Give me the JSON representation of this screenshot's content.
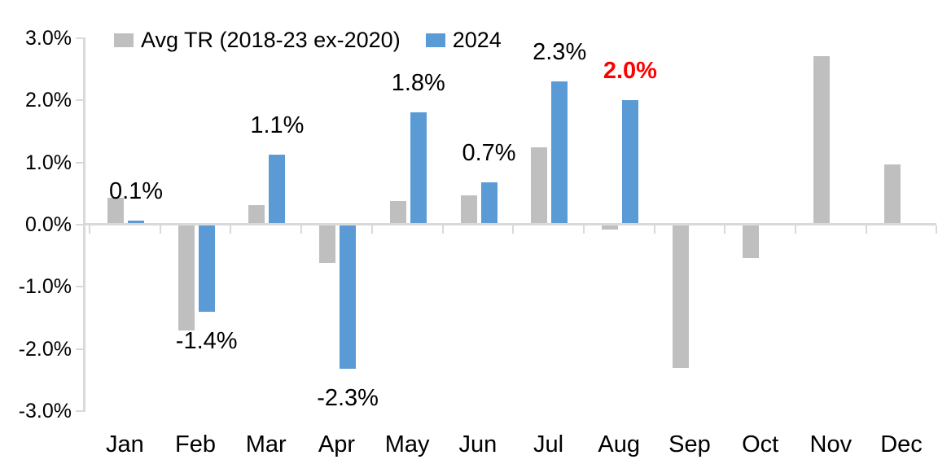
{
  "chart_data": {
    "type": "bar",
    "title": "",
    "categories": [
      "Jan",
      "Feb",
      "Mar",
      "Apr",
      "May",
      "Jun",
      "Jul",
      "Aug",
      "Sep",
      "Oct",
      "Nov",
      "Dec"
    ],
    "series": [
      {
        "name": "Avg TR (2018-23 ex-2020)",
        "color": "#BFBFBF",
        "values": [
          0.43,
          -1.7,
          0.32,
          -0.62,
          0.38,
          0.47,
          1.25,
          -0.08,
          -2.3,
          -0.54,
          2.71,
          0.97
        ]
      },
      {
        "name": "2024",
        "color": "#5B9BD5",
        "values": [
          0.06,
          -1.4,
          1.13,
          -2.32,
          1.81,
          0.68,
          2.3,
          2.0,
          null,
          null,
          null,
          null
        ]
      }
    ],
    "value_labels": [
      {
        "month_index": 0,
        "text": "0.1%",
        "color": "#000000",
        "bold": false
      },
      {
        "month_index": 1,
        "text": "-1.4%",
        "color": "#000000",
        "bold": false
      },
      {
        "month_index": 2,
        "text": "1.1%",
        "color": "#000000",
        "bold": false
      },
      {
        "month_index": 3,
        "text": "-2.3%",
        "color": "#000000",
        "bold": false
      },
      {
        "month_index": 4,
        "text": "1.8%",
        "color": "#000000",
        "bold": false
      },
      {
        "month_index": 5,
        "text": "0.7%",
        "color": "#000000",
        "bold": false
      },
      {
        "month_index": 6,
        "text": "2.3%",
        "color": "#000000",
        "bold": false
      },
      {
        "month_index": 7,
        "text": "2.0%",
        "color": "#FF0000",
        "bold": true
      }
    ],
    "yticks": [
      {
        "label": "3.0%",
        "value": 3
      },
      {
        "label": "2.0%",
        "value": 2
      },
      {
        "label": "1.0%",
        "value": 1
      },
      {
        "label": "0.0%",
        "value": 0
      },
      {
        "label": "-1.0%",
        "value": -1
      },
      {
        "label": "-2.0%",
        "value": -2
      },
      {
        "label": "-3.0%",
        "value": -3
      }
    ],
    "ylim": [
      -3,
      3
    ],
    "legend_position": "top",
    "grid": false,
    "axis_color": "#D9D9D9",
    "background": "#FFFFFF"
  }
}
